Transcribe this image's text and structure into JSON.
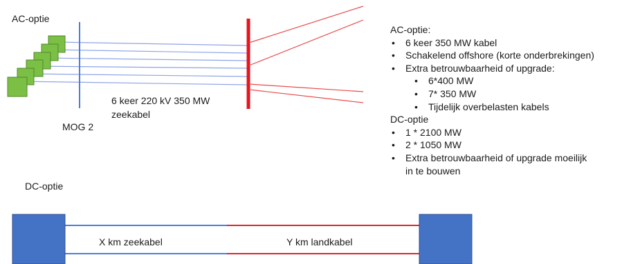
{
  "ac_section": {
    "title": "AC-optie",
    "hub_label": "MOG 2",
    "cable_label_line1": "6 keer 220 kV 350 MW",
    "cable_label_line2": "zeekabel"
  },
  "notes": {
    "ac_heading": "AC-optie:",
    "ac_items": [
      "6 keer 350 MW kabel",
      "Schakelend offshore (korte onderbrekingen)",
      "Extra betrouwbaarheid of upgrade:"
    ],
    "ac_subitems": [
      "6*400 MW",
      "7* 350 MW",
      "Tijdelijk overbelasten kabels"
    ],
    "dc_heading": "DC-optie",
    "dc_items": [
      "1 * 2100 MW",
      "2 * 1050 MW"
    ],
    "dc_last_line1": "Extra betrouwbaarheid of upgrade moeilijk",
    "dc_last_line2": "in te bouwen"
  },
  "dc_section": {
    "title": "DC-optie",
    "sea_cable_label": "X km zeekabel",
    "land_cable_label": "Y km landkabel"
  },
  "colors": {
    "platform_fill": "#7cbf45",
    "platform_stroke": "#4e8a2c",
    "sea_cable": "#8fa3e6",
    "hub_line": "#4a7bd6",
    "red": "#e8121d",
    "red_thin": "#e84a4a",
    "station_fill": "#4472c4",
    "station_stroke": "#2f528f",
    "dc_sea_cable": "#4a7bd6",
    "dc_land_cable": "#d9232e"
  }
}
